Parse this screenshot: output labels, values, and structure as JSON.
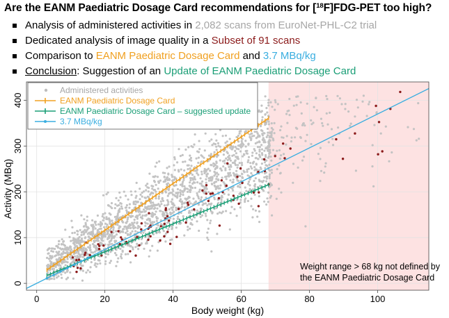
{
  "title": {
    "prefix": "Are the EANM Paediatric Dosage Card recommendations for [",
    "sup": "18",
    "suffix": "F]FDG-PET too high?"
  },
  "bullets": [
    {
      "pre": "Analysis of administered activities in ",
      "highlight": "2,082 scans from EuroNet-PHL-C2 trial",
      "post": ""
    },
    {
      "pre": "Dedicated analysis of image quality in a ",
      "highlight": "Subset of 91 scans",
      "post": ""
    },
    {
      "pre": "Comparison to ",
      "highlight": "EANM Paediatric Dosage Card",
      "mid": " and ",
      "highlight2": "3.7 MBq/kg",
      "post": ""
    },
    {
      "lead": "Conclusion",
      "pre": ": Suggestion of an ",
      "highlight": "Update of EANM Paediatric Dosage Card",
      "post": ""
    }
  ],
  "colors": {
    "grey": "#a6a6a6",
    "red": "#8b1a1a",
    "orange": "#f0a020",
    "blue": "#3aaee0",
    "green": "#1a9e76",
    "shade": "#fde2e2"
  },
  "chart_data": {
    "type": "scatter",
    "xlabel": "Body weight (kg)",
    "ylabel": "Activity (MBq)",
    "xlim": [
      -3,
      115
    ],
    "ylim": [
      -15,
      440
    ],
    "xticks": [
      0,
      20,
      40,
      60,
      80,
      100
    ],
    "yticks": [
      0,
      100,
      200,
      300,
      400
    ],
    "grid": true,
    "legend_position": "top-left",
    "legend": [
      {
        "key": "scatter",
        "label": "Administered activities"
      },
      {
        "key": "eanm",
        "label": "EANM Paediatric Dosage Card"
      },
      {
        "key": "update",
        "label": "EANM Paediatric Dosage Card – suggested update"
      },
      {
        "key": "linear",
        "label": "3.7 MBq/kg"
      }
    ],
    "shaded_region": {
      "x_from": 68,
      "x_to": 115
    },
    "annotation": {
      "line1": "Weight range > 68 kg not defined by",
      "line2": "the EANM Paediatric Dosage Card"
    },
    "series": [
      {
        "name": "EANM Paediatric Dosage Card",
        "type": "line",
        "slope": 5.1,
        "intercept": 14,
        "x_from": 3,
        "x_to": 68
      },
      {
        "name": "EANM Paediatric Dosage Card – suggested update",
        "type": "line",
        "slope": 3.05,
        "intercept": 8,
        "x_from": 3,
        "x_to": 68
      },
      {
        "name": "3.7 MBq/kg",
        "type": "line",
        "slope": 3.7,
        "intercept": 0,
        "x_from": -3,
        "x_to": 115
      }
    ],
    "scatter_counts": {
      "administered": 2082,
      "subset": 91
    }
  }
}
